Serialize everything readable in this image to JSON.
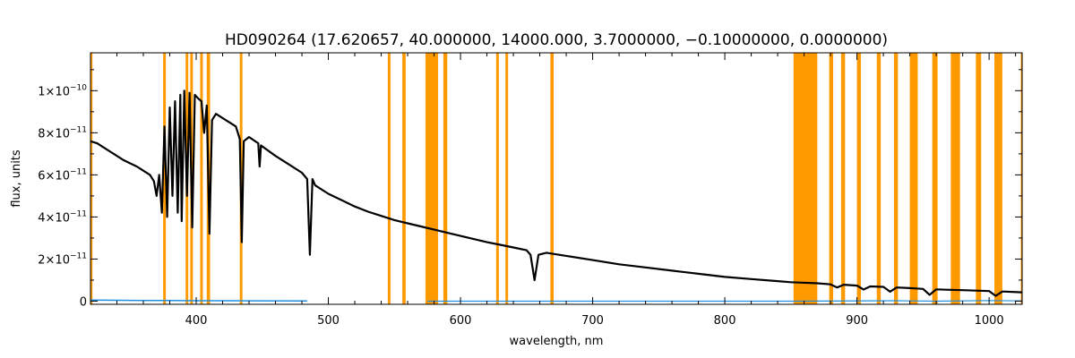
{
  "chart_data": {
    "type": "line",
    "title": "HD090264   (17.620657, 40.000000, 14000.000, 3.7000000, −0.10000000, 0.0000000)",
    "xlabel": "wavelength, nm",
    "ylabel": "flux, units",
    "xlim": [
      320,
      1025
    ],
    "ylim": [
      -1.5e-12,
      1.18e-10
    ],
    "x_ticks": [
      400,
      500,
      600,
      700,
      800,
      900,
      1000
    ],
    "x_tick_labels": [
      "400",
      "500",
      "600",
      "700",
      "800",
      "900",
      "1000"
    ],
    "y_ticks": [
      0,
      2e-11,
      4e-11,
      6e-11,
      8e-11,
      1e-10
    ],
    "y_tick_labels": [
      {
        "mantissa": "0",
        "exponent": ""
      },
      {
        "mantissa": "2×10",
        "exponent": "−11"
      },
      {
        "mantissa": "4×10",
        "exponent": "−11"
      },
      {
        "mantissa": "6×10",
        "exponent": "−11"
      },
      {
        "mantissa": "8×10",
        "exponent": "−11"
      },
      {
        "mantissa": "1×10",
        "exponent": "−10"
      }
    ],
    "colors": {
      "spectrum": "#000000",
      "error": "#1e8fe0",
      "mask": "#ff9900"
    },
    "mask_bands": [
      [
        320,
        321.5
      ],
      [
        375,
        377
      ],
      [
        392,
        394
      ],
      [
        395.5,
        397.5
      ],
      [
        403,
        405
      ],
      [
        408,
        410.5
      ],
      [
        433,
        435
      ],
      [
        545,
        547
      ],
      [
        556,
        558.5
      ],
      [
        573.5,
        583
      ],
      [
        587,
        590
      ],
      [
        627,
        629
      ],
      [
        634,
        636
      ],
      [
        668,
        670.5
      ],
      [
        852,
        870
      ],
      [
        879,
        882
      ],
      [
        888,
        891
      ],
      [
        900,
        903
      ],
      [
        915,
        918
      ],
      [
        928,
        931
      ],
      [
        940,
        946
      ],
      [
        957,
        961
      ],
      [
        971,
        978
      ],
      [
        990,
        994
      ],
      [
        1004,
        1010
      ],
      [
        1024,
        1025
      ]
    ],
    "series": [
      {
        "values": [
          [
            320,
            7.6e-11
          ],
          [
            325,
            7.5e-11
          ],
          [
            330,
            7.3e-11
          ],
          [
            335,
            7.1e-11
          ],
          [
            340,
            6.9e-11
          ],
          [
            345,
            6.7e-11
          ],
          [
            350,
            6.55e-11
          ],
          [
            355,
            6.4e-11
          ],
          [
            360,
            6.2e-11
          ],
          [
            365,
            6e-11
          ],
          [
            368,
            5.7e-11
          ],
          [
            370,
            5e-11
          ],
          [
            372,
            6e-11
          ],
          [
            374,
            4.2e-11
          ],
          [
            376,
            8.3e-11
          ],
          [
            378,
            4e-11
          ],
          [
            380,
            9.2e-11
          ],
          [
            382,
            5e-11
          ],
          [
            384,
            9.5e-11
          ],
          [
            386,
            4.2e-11
          ],
          [
            388,
            9.8e-11
          ],
          [
            389,
            3.8e-11
          ],
          [
            391,
            1e-10
          ],
          [
            393,
            5e-11
          ],
          [
            395,
            9.9e-11
          ],
          [
            397,
            3.5e-11
          ],
          [
            399,
            9.8e-11
          ],
          [
            402,
            9.6e-11
          ],
          [
            404,
            9.5e-11
          ],
          [
            406,
            8e-11
          ],
          [
            408,
            9.3e-11
          ],
          [
            410,
            3.2e-11
          ],
          [
            412,
            8.6e-11
          ],
          [
            415,
            8.9e-11
          ],
          [
            420,
            8.7e-11
          ],
          [
            425,
            8.5e-11
          ],
          [
            430,
            8.3e-11
          ],
          [
            433,
            7.7e-11
          ],
          [
            434.5,
            2.8e-11
          ],
          [
            436,
            7.6e-11
          ],
          [
            440,
            7.8e-11
          ],
          [
            447,
            7.5e-11
          ],
          [
            448,
            6.4e-11
          ],
          [
            449,
            7.4e-11
          ],
          [
            460,
            6.9e-11
          ],
          [
            470,
            6.5e-11
          ],
          [
            480,
            6.1e-11
          ],
          [
            484,
            5.8e-11
          ],
          [
            486,
            2.2e-11
          ],
          [
            488,
            5.8e-11
          ],
          [
            490,
            5.5e-11
          ],
          [
            500,
            5.1e-11
          ],
          [
            510,
            4.8e-11
          ],
          [
            520,
            4.5e-11
          ],
          [
            530,
            4.25e-11
          ],
          [
            540,
            4.05e-11
          ],
          [
            550,
            3.85e-11
          ],
          [
            560,
            3.7e-11
          ],
          [
            570,
            3.55e-11
          ],
          [
            580,
            3.4e-11
          ],
          [
            590,
            3.25e-11
          ],
          [
            600,
            3.1e-11
          ],
          [
            610,
            2.95e-11
          ],
          [
            620,
            2.8e-11
          ],
          [
            630,
            2.68e-11
          ],
          [
            640,
            2.55e-11
          ],
          [
            650,
            2.42e-11
          ],
          [
            653,
            2.2e-11
          ],
          [
            656,
            1e-11
          ],
          [
            659,
            2.2e-11
          ],
          [
            665,
            2.3e-11
          ],
          [
            680,
            2.15e-11
          ],
          [
            700,
            1.95e-11
          ],
          [
            720,
            1.75e-11
          ],
          [
            740,
            1.6e-11
          ],
          [
            760,
            1.45e-11
          ],
          [
            780,
            1.3e-11
          ],
          [
            800,
            1.15e-11
          ],
          [
            820,
            1.05e-11
          ],
          [
            840,
            9.5e-12
          ],
          [
            850,
            9e-12
          ],
          [
            870,
            8.5e-12
          ],
          [
            880,
            8e-12
          ],
          [
            885,
            6.5e-12
          ],
          [
            890,
            7.8e-12
          ],
          [
            900,
            7.4e-12
          ],
          [
            905,
            5.5e-12
          ],
          [
            910,
            7e-12
          ],
          [
            920,
            6.8e-12
          ],
          [
            925,
            4.5e-12
          ],
          [
            930,
            6.5e-12
          ],
          [
            940,
            6.2e-12
          ],
          [
            950,
            5.8e-12
          ],
          [
            955,
            3e-12
          ],
          [
            960,
            5.6e-12
          ],
          [
            970,
            5.4e-12
          ],
          [
            980,
            5.2e-12
          ],
          [
            990,
            5e-12
          ],
          [
            1000,
            4.8e-12
          ],
          [
            1005,
            2.5e-12
          ],
          [
            1010,
            4.6e-12
          ],
          [
            1025,
            4.2e-12
          ]
        ]
      },
      {
        "values": [
          [
            320,
            5e-13
          ],
          [
            340,
            4e-13
          ],
          [
            360,
            3e-13
          ],
          [
            380,
            3e-13
          ],
          [
            400,
            2e-13
          ],
          [
            440,
            1.5e-13
          ],
          [
            480,
            1e-13
          ],
          [
            484,
            1e-13
          ]
        ]
      },
      {
        "values": [
          [
            575,
            0
          ],
          [
            700,
            0
          ],
          [
            850,
            0
          ],
          [
            930,
            2e-13
          ],
          [
            960,
            0
          ],
          [
            1000,
            3e-13
          ],
          [
            1025,
            1e-13
          ]
        ]
      }
    ]
  }
}
